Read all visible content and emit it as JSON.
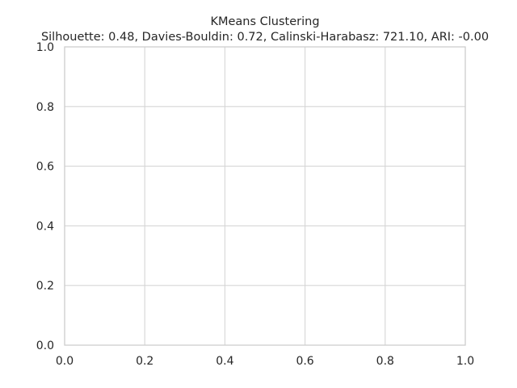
{
  "chart_data": {
    "type": "scatter",
    "title": "KMeans Clustering",
    "subtitle": "Silhouette: 0.48, Davies-Bouldin: 0.72, Calinski-Harabasz: 721.10, ARI: -0.00",
    "xlabel": "",
    "ylabel": "",
    "xlim": [
      0.0,
      1.0
    ],
    "ylim": [
      0.0,
      1.0
    ],
    "x_ticks": [
      "0.0",
      "0.2",
      "0.4",
      "0.6",
      "0.8",
      "1.0"
    ],
    "y_ticks": [
      "0.0",
      "0.2",
      "0.4",
      "0.6",
      "0.8",
      "1.0"
    ],
    "grid": true,
    "points": []
  }
}
